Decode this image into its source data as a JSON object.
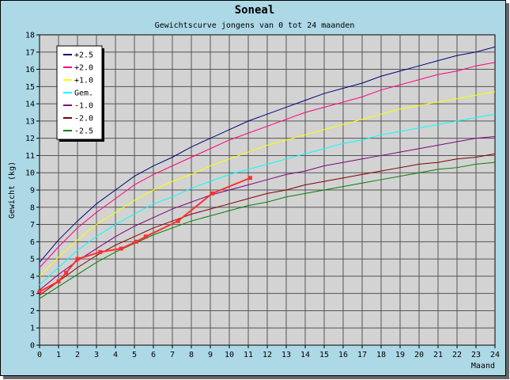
{
  "chart_data": {
    "type": "line",
    "title": "Soneal",
    "subtitle": "Gewichtscurve jongens van 0 tot 24 maanden",
    "xlabel": "Maand",
    "ylabel": "Gewicht (kg)",
    "xlim": [
      0,
      24
    ],
    "ylim": [
      0,
      18
    ],
    "x_ticks": [
      "0",
      "1",
      "2",
      "3",
      "4",
      "5",
      "6",
      "7",
      "8",
      "9",
      "10",
      "11",
      "12",
      "13",
      "14",
      "15",
      "16",
      "17",
      "18",
      "19",
      "20",
      "21",
      "22",
      "23",
      "24"
    ],
    "y_ticks": [
      "0",
      "1",
      "2",
      "3",
      "4",
      "5",
      "6",
      "7",
      "8",
      "9",
      "10",
      "11",
      "12",
      "13",
      "14",
      "15",
      "16",
      "17",
      "18"
    ],
    "grid": true,
    "legend_position": "top-left",
    "reference_x": [
      0,
      1,
      2,
      3,
      4,
      5,
      6,
      7,
      8,
      9,
      10,
      11,
      12,
      13,
      14,
      15,
      16,
      17,
      18,
      19,
      20,
      21,
      22,
      23,
      24
    ],
    "series": [
      {
        "name": "+2.5",
        "color": "#000080",
        "values": [
          4.8,
          6.1,
          7.2,
          8.2,
          9.0,
          9.8,
          10.4,
          10.9,
          11.5,
          12.0,
          12.5,
          13.0,
          13.4,
          13.8,
          14.2,
          14.6,
          14.9,
          15.2,
          15.6,
          15.9,
          16.2,
          16.5,
          16.8,
          17.0,
          17.3
        ]
      },
      {
        "name": "+2.0",
        "color": "#ff0080",
        "values": [
          4.5,
          5.7,
          6.8,
          7.7,
          8.5,
          9.3,
          9.9,
          10.4,
          10.9,
          11.4,
          11.9,
          12.3,
          12.7,
          13.1,
          13.5,
          13.8,
          14.1,
          14.4,
          14.8,
          15.1,
          15.4,
          15.7,
          15.9,
          16.2,
          16.4
        ]
      },
      {
        "name": "+1.0",
        "color": "#ffff00",
        "values": [
          4.0,
          5.1,
          6.1,
          7.0,
          7.7,
          8.4,
          9.0,
          9.5,
          9.9,
          10.4,
          10.8,
          11.2,
          11.6,
          11.9,
          12.2,
          12.5,
          12.8,
          13.1,
          13.4,
          13.7,
          13.9,
          14.1,
          14.3,
          14.5,
          14.7
        ]
      },
      {
        "name": "Gem.",
        "color": "#00ffff",
        "values": [
          3.5,
          4.5,
          5.5,
          6.3,
          7.0,
          7.6,
          8.2,
          8.6,
          9.1,
          9.5,
          9.9,
          10.2,
          10.5,
          10.8,
          11.1,
          11.4,
          11.7,
          11.9,
          12.2,
          12.4,
          12.6,
          12.8,
          13.0,
          13.2,
          13.4
        ]
      },
      {
        "name": "-1.0",
        "color": "#800080",
        "values": [
          3.2,
          4.1,
          4.9,
          5.6,
          6.3,
          6.9,
          7.4,
          7.9,
          8.3,
          8.7,
          9.0,
          9.3,
          9.6,
          9.9,
          10.1,
          10.4,
          10.6,
          10.8,
          11.0,
          11.2,
          11.4,
          11.6,
          11.8,
          12.0,
          12.1
        ]
      },
      {
        "name": "-2.0",
        "color": "#800000",
        "values": [
          2.9,
          3.7,
          4.5,
          5.2,
          5.8,
          6.3,
          6.8,
          7.2,
          7.6,
          7.9,
          8.2,
          8.5,
          8.8,
          9.0,
          9.3,
          9.5,
          9.7,
          9.9,
          10.1,
          10.3,
          10.5,
          10.6,
          10.8,
          10.9,
          11.1
        ]
      },
      {
        "name": "-2.5",
        "color": "#008000",
        "values": [
          2.7,
          3.4,
          4.1,
          4.8,
          5.4,
          5.9,
          6.4,
          6.8,
          7.2,
          7.5,
          7.8,
          8.1,
          8.3,
          8.6,
          8.8,
          9.0,
          9.2,
          9.4,
          9.6,
          9.8,
          10.0,
          10.2,
          10.3,
          10.5,
          10.6
        ]
      }
    ],
    "measurements": {
      "color": "#ff3030",
      "x": [
        0,
        1.0,
        1.4,
        2.0,
        3.2,
        4.3,
        5.1,
        5.6,
        7.3,
        9.1,
        11.1
      ],
      "y": [
        3.1,
        3.7,
        4.2,
        5.0,
        5.4,
        5.6,
        6.0,
        6.3,
        7.2,
        8.8,
        9.7
      ]
    }
  }
}
